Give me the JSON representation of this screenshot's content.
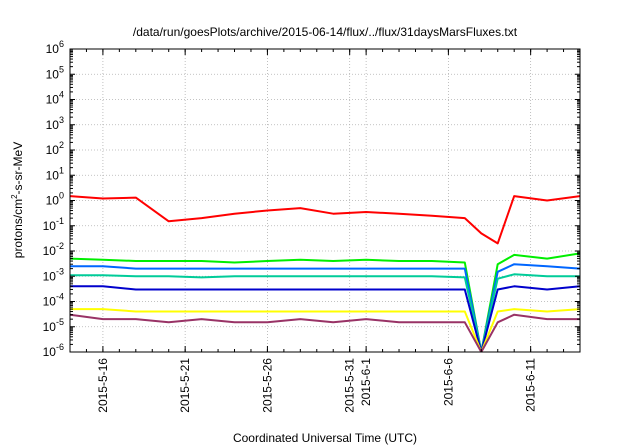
{
  "chart_data": {
    "type": "line",
    "title": "/data/run/goesPlots/archive/2015-06-14/flux/../flux/31daysMarsFluxes.txt",
    "xlabel": "Coordinated Universal Time (UTC)",
    "ylabel": {
      "pre": "protons/cm",
      "sup": "2",
      "post": "-s-sr-MeV"
    },
    "yscale": "log",
    "ylim": [
      1e-06,
      1000000.0
    ],
    "xlim": [
      "2015-05-14",
      "2015-06-14"
    ],
    "grid": true,
    "legend": "none",
    "y_ticks": [
      {
        "base": "10",
        "exp": "-6",
        "value": 1e-06
      },
      {
        "base": "10",
        "exp": "-5",
        "value": 1e-05
      },
      {
        "base": "10",
        "exp": "-4",
        "value": 0.0001
      },
      {
        "base": "10",
        "exp": "-3",
        "value": 0.001
      },
      {
        "base": "10",
        "exp": "-2",
        "value": 0.01
      },
      {
        "base": "10",
        "exp": "-1",
        "value": 0.1
      },
      {
        "base": "10",
        "exp": "0",
        "value": 1
      },
      {
        "base": "10",
        "exp": "1",
        "value": 10.0
      },
      {
        "base": "10",
        "exp": "2",
        "value": 100.0
      },
      {
        "base": "10",
        "exp": "3",
        "value": 1000.0
      },
      {
        "base": "10",
        "exp": "4",
        "value": 10000.0
      },
      {
        "base": "10",
        "exp": "5",
        "value": 100000.0
      },
      {
        "base": "10",
        "exp": "6",
        "value": 1000000.0
      }
    ],
    "x_ticks": [
      {
        "label": "2015-5-16",
        "date": "2015-05-16"
      },
      {
        "label": "2015-5-21",
        "date": "2015-05-21"
      },
      {
        "label": "2015-5-26",
        "date": "2015-05-26"
      },
      {
        "label": "2015-5-31",
        "date": "2015-05-31"
      },
      {
        "label": "2015-6-1",
        "date": "2015-06-01"
      },
      {
        "label": "2015-6-6",
        "date": "2015-06-06"
      },
      {
        "label": "2015-6-11",
        "date": "2015-06-11"
      }
    ],
    "series": [
      {
        "color": "#ff0000",
        "x": [
          "2015-05-14",
          "2015-05-16",
          "2015-05-18",
          "2015-05-20",
          "2015-05-22",
          "2015-05-24",
          "2015-05-26",
          "2015-05-28",
          "2015-05-30",
          "2015-06-01",
          "2015-06-03",
          "2015-06-05",
          "2015-06-07",
          "2015-06-08",
          "2015-06-09",
          "2015-06-10",
          "2015-06-12",
          "2015-06-14"
        ],
        "y": [
          1.5,
          1.2,
          1.3,
          0.15,
          0.2,
          0.3,
          0.4,
          0.5,
          0.3,
          0.35,
          0.3,
          0.25,
          0.2,
          0.05,
          0.02,
          1.5,
          1.0,
          1.5
        ]
      },
      {
        "color": "#00ee00",
        "x": [
          "2015-05-14",
          "2015-05-16",
          "2015-05-18",
          "2015-05-20",
          "2015-05-22",
          "2015-05-24",
          "2015-05-26",
          "2015-05-28",
          "2015-05-30",
          "2015-06-01",
          "2015-06-03",
          "2015-06-05",
          "2015-06-07",
          "2015-06-08",
          "2015-06-09",
          "2015-06-10",
          "2015-06-12",
          "2015-06-14"
        ],
        "y": [
          0.005,
          0.0045,
          0.004,
          0.004,
          0.004,
          0.0035,
          0.004,
          0.0045,
          0.004,
          0.0045,
          0.004,
          0.004,
          0.0035,
          1e-06,
          0.003,
          0.007,
          0.005,
          0.008
        ]
      },
      {
        "color": "#0066ff",
        "x": [
          "2015-05-14",
          "2015-05-16",
          "2015-05-18",
          "2015-05-20",
          "2015-05-22",
          "2015-05-24",
          "2015-05-26",
          "2015-05-28",
          "2015-05-30",
          "2015-06-01",
          "2015-06-03",
          "2015-06-05",
          "2015-06-07",
          "2015-06-08",
          "2015-06-09",
          "2015-06-10",
          "2015-06-12",
          "2015-06-14"
        ],
        "y": [
          0.0025,
          0.0025,
          0.002,
          0.002,
          0.002,
          0.002,
          0.002,
          0.002,
          0.002,
          0.002,
          0.002,
          0.002,
          0.002,
          1e-06,
          0.0015,
          0.003,
          0.0025,
          0.002
        ]
      },
      {
        "color": "#00cc99",
        "x": [
          "2015-05-14",
          "2015-05-16",
          "2015-05-18",
          "2015-05-20",
          "2015-05-22",
          "2015-05-24",
          "2015-05-26",
          "2015-05-28",
          "2015-05-30",
          "2015-06-01",
          "2015-06-03",
          "2015-06-05",
          "2015-06-07",
          "2015-06-08",
          "2015-06-09",
          "2015-06-10",
          "2015-06-12",
          "2015-06-14"
        ],
        "y": [
          0.0011,
          0.0011,
          0.001,
          0.001,
          0.0009,
          0.001,
          0.001,
          0.001,
          0.001,
          0.001,
          0.001,
          0.001,
          0.0009,
          1e-06,
          0.0008,
          0.0012,
          0.001,
          0.001
        ]
      },
      {
        "color": "#0000cc",
        "x": [
          "2015-05-14",
          "2015-05-16",
          "2015-05-18",
          "2015-05-20",
          "2015-05-22",
          "2015-05-24",
          "2015-05-26",
          "2015-05-28",
          "2015-05-30",
          "2015-06-01",
          "2015-06-03",
          "2015-06-05",
          "2015-06-07",
          "2015-06-08",
          "2015-06-09",
          "2015-06-10",
          "2015-06-12",
          "2015-06-14"
        ],
        "y": [
          0.0004,
          0.0004,
          0.0003,
          0.0003,
          0.0003,
          0.0003,
          0.0003,
          0.0003,
          0.0003,
          0.0003,
          0.0003,
          0.0003,
          0.0003,
          1e-06,
          0.0003,
          0.0004,
          0.0003,
          0.0004
        ]
      },
      {
        "color": "#ffff00",
        "x": [
          "2015-05-14",
          "2015-05-16",
          "2015-05-18",
          "2015-05-20",
          "2015-05-22",
          "2015-05-24",
          "2015-05-26",
          "2015-05-28",
          "2015-05-30",
          "2015-06-01",
          "2015-06-03",
          "2015-06-05",
          "2015-06-07",
          "2015-06-08",
          "2015-06-09",
          "2015-06-10",
          "2015-06-12",
          "2015-06-14"
        ],
        "y": [
          5e-05,
          5e-05,
          4e-05,
          4e-05,
          4e-05,
          4e-05,
          4e-05,
          4e-05,
          4e-05,
          4e-05,
          4e-05,
          4e-05,
          4e-05,
          1e-06,
          4e-05,
          5e-05,
          4e-05,
          5e-05
        ]
      },
      {
        "color": "#993366",
        "x": [
          "2015-05-14",
          "2015-05-16",
          "2015-05-18",
          "2015-05-20",
          "2015-05-22",
          "2015-05-24",
          "2015-05-26",
          "2015-05-28",
          "2015-05-30",
          "2015-06-01",
          "2015-06-03",
          "2015-06-05",
          "2015-06-07",
          "2015-06-08",
          "2015-06-09",
          "2015-06-10",
          "2015-06-12",
          "2015-06-14"
        ],
        "y": [
          3e-05,
          2e-05,
          2e-05,
          1.5e-05,
          2e-05,
          1.5e-05,
          1.5e-05,
          2e-05,
          1.5e-05,
          2e-05,
          1.5e-05,
          1.5e-05,
          1.5e-05,
          1e-06,
          1.5e-05,
          3e-05,
          2e-05,
          2e-05
        ]
      }
    ]
  }
}
